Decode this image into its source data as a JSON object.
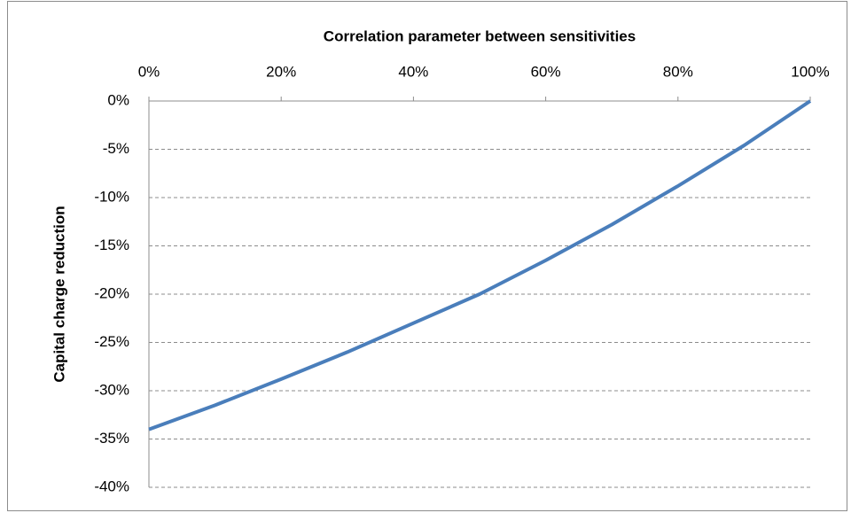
{
  "chart_data": {
    "type": "line",
    "title": "Correlation parameter between sensitivities",
    "y_label": "Capital charge reduction",
    "x": [
      0,
      10,
      20,
      30,
      40,
      50,
      60,
      70,
      80,
      90,
      100
    ],
    "values": [
      -34,
      -31.5,
      -28.8,
      -26,
      -23,
      -20,
      -16.5,
      -12.8,
      -8.8,
      -4.6,
      0
    ],
    "color": "#4a7ebb",
    "xlim": [
      0,
      100
    ],
    "xticks": [
      {
        "value": 0,
        "label": "0%"
      },
      {
        "value": 20,
        "label": "20%"
      },
      {
        "value": 40,
        "label": "40%"
      },
      {
        "value": 60,
        "label": "60%"
      },
      {
        "value": 80,
        "label": "80%"
      },
      {
        "value": 100,
        "label": "100%"
      }
    ],
    "ylim": [
      -40,
      0
    ],
    "yticks": [
      {
        "value": 0,
        "label": "0%"
      },
      {
        "value": -5,
        "label": "-5%"
      },
      {
        "value": -10,
        "label": "-10%"
      },
      {
        "value": -15,
        "label": "-15%"
      },
      {
        "value": -20,
        "label": "-20%"
      },
      {
        "value": -25,
        "label": "-25%"
      },
      {
        "value": -30,
        "label": "-30%"
      },
      {
        "value": -35,
        "label": "-35%"
      },
      {
        "value": -40,
        "label": "-40%"
      }
    ],
    "grid": true
  }
}
